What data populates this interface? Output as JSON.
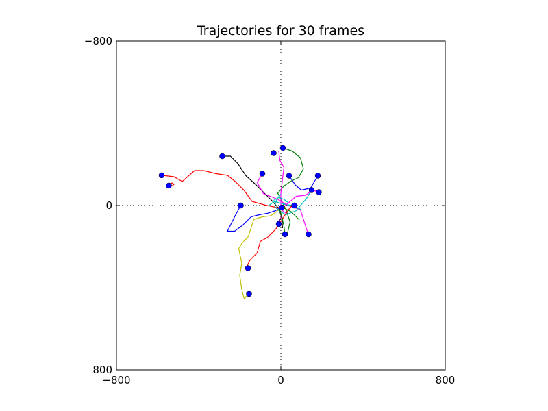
{
  "chart_data": {
    "type": "line",
    "title": "Trajectories for 30 frames",
    "xlabel": "",
    "ylabel": "",
    "xlim": [
      -800,
      800
    ],
    "ylim": [
      -800,
      800
    ],
    "y_inverted": true,
    "x_ticks": [
      -800,
      0,
      800
    ],
    "y_ticks": [
      -800,
      0,
      800
    ],
    "x_tick_labels": [
      "−800",
      "0",
      "800"
    ],
    "y_tick_labels": [
      "−800",
      "0",
      "800"
    ],
    "zero_lines": "dotted",
    "marker_color": "#0000ff",
    "series": [
      {
        "color": "#ff0000",
        "points": [
          [
            -580,
            -147
          ],
          [
            -520,
            -140
          ],
          [
            -480,
            -117
          ],
          [
            -420,
            -170
          ],
          [
            -375,
            -170
          ],
          [
            -315,
            -155
          ],
          [
            -260,
            -147
          ],
          [
            -220,
            -115
          ],
          [
            -180,
            -75
          ],
          [
            -140,
            -20
          ],
          [
            -80,
            -3
          ],
          [
            -20,
            10
          ],
          [
            0,
            10
          ]
        ]
      },
      {
        "color": "#ff0000",
        "points": [
          [
            -545,
            -97
          ],
          [
            -530,
            -110
          ],
          [
            -520,
            -103
          ],
          [
            -530,
            -95
          ]
        ]
      },
      {
        "color": "#000000",
        "points": [
          [
            -285,
            -240
          ],
          [
            -245,
            -240
          ],
          [
            -210,
            -205
          ],
          [
            -170,
            -145
          ],
          [
            -120,
            -100
          ],
          [
            -80,
            -60
          ],
          [
            -40,
            -20
          ],
          [
            -10,
            15
          ],
          [
            5,
            60
          ],
          [
            8,
            110
          ]
        ]
      },
      {
        "color": "#008000",
        "points": [
          [
            10,
            -280
          ],
          [
            55,
            -265
          ],
          [
            95,
            -232
          ],
          [
            110,
            -178
          ],
          [
            85,
            -135
          ],
          [
            52,
            -120
          ],
          [
            15,
            -95
          ],
          [
            -15,
            -60
          ],
          [
            5,
            -20
          ],
          [
            25,
            20
          ],
          [
            45,
            80
          ],
          [
            30,
            145
          ]
        ]
      },
      {
        "color": "#ff00ff",
        "points": [
          [
            -90,
            -155
          ],
          [
            -115,
            -112
          ],
          [
            -85,
            -58
          ],
          [
            -15,
            -30
          ],
          [
            35,
            0
          ],
          [
            95,
            20
          ],
          [
            130,
            130
          ]
        ]
      },
      {
        "color": "#ff00ff",
        "points": [
          [
            -10,
            -265
          ],
          [
            -5,
            -220
          ],
          [
            15,
            -185
          ],
          [
            8,
            -130
          ],
          [
            0,
            -60
          ],
          [
            0,
            20
          ],
          [
            30,
            40
          ]
        ]
      },
      {
        "color": "#0000ff",
        "points": [
          [
            40,
            -145
          ],
          [
            70,
            -100
          ],
          [
            100,
            -75
          ],
          [
            145,
            -85
          ],
          [
            180,
            -145
          ]
        ]
      },
      {
        "color": "#0000ff",
        "points": [
          [
            -195,
            0
          ],
          [
            -220,
            45
          ],
          [
            -245,
            95
          ],
          [
            -260,
            125
          ],
          [
            -225,
            125
          ],
          [
            -185,
            95
          ],
          [
            -145,
            55
          ],
          [
            -105,
            45
          ],
          [
            -65,
            38
          ],
          [
            -25,
            25
          ],
          [
            -5,
            10
          ]
        ]
      },
      {
        "color": "#bfbf00",
        "points": [
          [
            -160,
            430
          ],
          [
            -178,
            455
          ],
          [
            -190,
            410
          ],
          [
            -200,
            340
          ],
          [
            -190,
            280
          ],
          [
            -205,
            210
          ],
          [
            -190,
            185
          ],
          [
            -158,
            150
          ],
          [
            -132,
            68
          ],
          [
            -90,
            55
          ],
          [
            -50,
            50
          ],
          [
            -20,
            30
          ],
          [
            0,
            5
          ],
          [
            25,
            10
          ]
        ]
      },
      {
        "color": "#ff0000",
        "points": [
          [
            -165,
            305
          ],
          [
            -160,
            285
          ],
          [
            -150,
            265
          ],
          [
            -115,
            230
          ],
          [
            -100,
            175
          ],
          [
            -65,
            155
          ],
          [
            -25,
            115
          ],
          [
            5,
            70
          ],
          [
            30,
            30
          ],
          [
            50,
            5
          ],
          [
            70,
            0
          ]
        ]
      },
      {
        "color": "#00bfbf",
        "points": [
          [
            150,
            -75
          ],
          [
            125,
            -35
          ],
          [
            100,
            -5
          ],
          [
            75,
            25
          ],
          [
            50,
            35
          ],
          [
            25,
            45
          ],
          [
            -10,
            25
          ],
          [
            -30,
            5
          ],
          [
            -20,
            -30
          ],
          [
            0,
            -55
          ]
        ]
      },
      {
        "color": "#00bfbf",
        "points": [
          [
            -60,
            0
          ],
          [
            -30,
            -20
          ],
          [
            20,
            -5
          ],
          [
            60,
            0
          ],
          [
            100,
            20
          ]
        ]
      },
      {
        "color": "#ff00ff",
        "points": [
          [
            185,
            -65
          ],
          [
            155,
            -75
          ],
          [
            120,
            -50
          ],
          [
            75,
            -45
          ],
          [
            40,
            -15
          ],
          [
            10,
            10
          ]
        ]
      },
      {
        "color": "#008000",
        "points": [
          [
            20,
            140
          ],
          [
            15,
            100
          ],
          [
            5,
            55
          ],
          [
            -5,
            20
          ],
          [
            10,
            10
          ],
          [
            50,
            30
          ],
          [
            90,
            70
          ]
        ]
      },
      {
        "color": "#00bfbf",
        "points": [
          [
            -35,
            -25
          ],
          [
            -10,
            -40
          ],
          [
            15,
            -30
          ],
          [
            35,
            -15
          ]
        ]
      },
      {
        "color": "#800080",
        "points": [
          [
            -10,
            90
          ],
          [
            -5,
            70
          ],
          [
            5,
            50
          ]
        ]
      }
    ],
    "markers": [
      [
        -580,
        -147
      ],
      [
        -545,
        -97
      ],
      [
        -285,
        -240
      ],
      [
        10,
        -280
      ],
      [
        -35,
        -255
      ],
      [
        -90,
        -155
      ],
      [
        40,
        -145
      ],
      [
        180,
        -145
      ],
      [
        150,
        -75
      ],
      [
        185,
        -65
      ],
      [
        -195,
        0
      ],
      [
        -160,
        305
      ],
      [
        -155,
        430
      ],
      [
        20,
        140
      ],
      [
        135,
        140
      ],
      [
        65,
        0
      ],
      [
        -10,
        90
      ],
      [
        5,
        10
      ]
    ]
  }
}
